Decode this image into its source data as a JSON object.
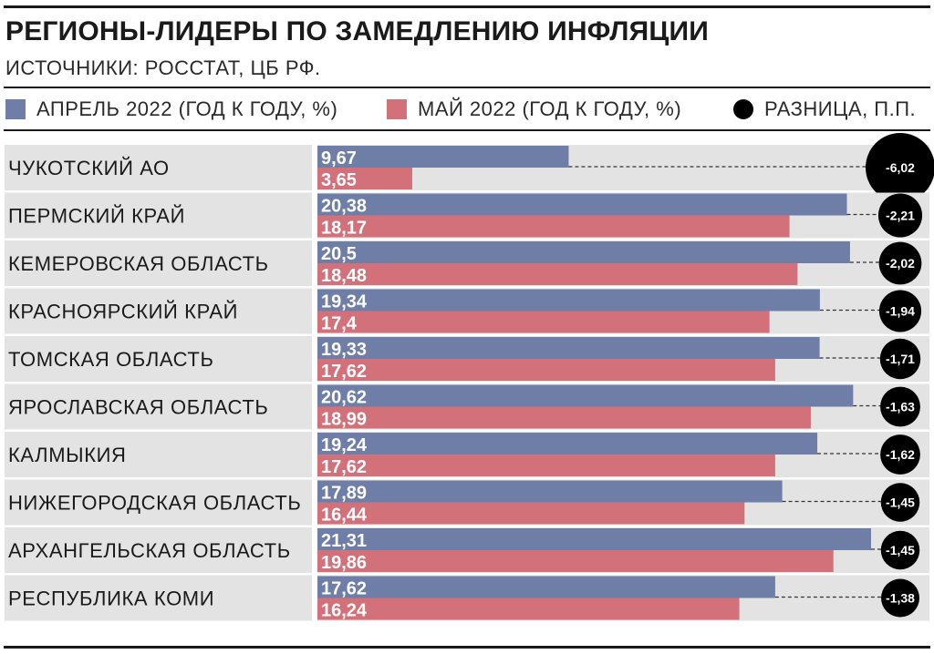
{
  "header": {
    "title": "РЕГИОНЫ-ЛИДЕРЫ ПО ЗАМЕДЛЕНИЮ ИНФЛЯЦИИ",
    "source": "ИСТОЧНИКИ: РОССТАТ, ЦБ РФ."
  },
  "legend": {
    "april": "АПРЕЛЬ 2022 (ГОД К ГОДУ, %)",
    "may": "МАЙ 2022 (ГОД К ГОДУ, %)",
    "diff": "РАЗНИЦА, П.П."
  },
  "colors": {
    "april": "#6e7ea6",
    "may": "#d2717a",
    "diff": "#000000",
    "row_bg": "#e3e3e3"
  },
  "chart_data": {
    "type": "bar",
    "orientation": "horizontal",
    "categories": [
      "ЧУКОТСКИЙ АО",
      "ПЕРМСКИЙ КРАЙ",
      "КЕМЕРОВСКАЯ ОБЛАСТЬ",
      "КРАСНОЯРСКИЙ КРАЙ",
      "ТОМСКАЯ ОБЛАСТЬ",
      "ЯРОСЛАВСКАЯ ОБЛАСТЬ",
      "КАЛМЫКИЯ",
      "НИЖЕГОРОДСКАЯ ОБЛАСТЬ",
      "АРХАНГЕЛЬСКАЯ ОБЛАСТЬ",
      "РЕСПУБЛИКА КОМИ"
    ],
    "series": [
      {
        "name": "АПРЕЛЬ 2022 (ГОД К ГОДУ, %)",
        "values": [
          9.67,
          20.38,
          20.5,
          19.34,
          19.33,
          20.62,
          19.24,
          17.89,
          21.31,
          17.62
        ],
        "labels": [
          "9,67",
          "20,38",
          "20,5",
          "19,34",
          "19,33",
          "20,62",
          "19,24",
          "17,89",
          "21,31",
          "17,62"
        ]
      },
      {
        "name": "МАЙ 2022 (ГОД К ГОДУ, %)",
        "values": [
          3.65,
          18.17,
          18.48,
          17.4,
          17.62,
          18.99,
          17.62,
          16.44,
          19.86,
          16.24
        ],
        "labels": [
          "3,65",
          "18,17",
          "18,48",
          "17,4",
          "17,62",
          "18,99",
          "17,62",
          "16,44",
          "19,86",
          "16,24"
        ]
      },
      {
        "name": "РАЗНИЦА, П.П.",
        "values": [
          -6.02,
          -2.21,
          -2.02,
          -1.94,
          -1.71,
          -1.63,
          -1.62,
          -1.45,
          -1.45,
          -1.38
        ],
        "labels": [
          "-6,02",
          "-2,21",
          "-2,02",
          "-1,94",
          "-1,71",
          "-1,63",
          "-1,62",
          "-1,45",
          "-1,45",
          "-1,38"
        ]
      }
    ],
    "xlim": [
      0,
      21.31
    ],
    "grid": false,
    "legend_position": "top"
  }
}
